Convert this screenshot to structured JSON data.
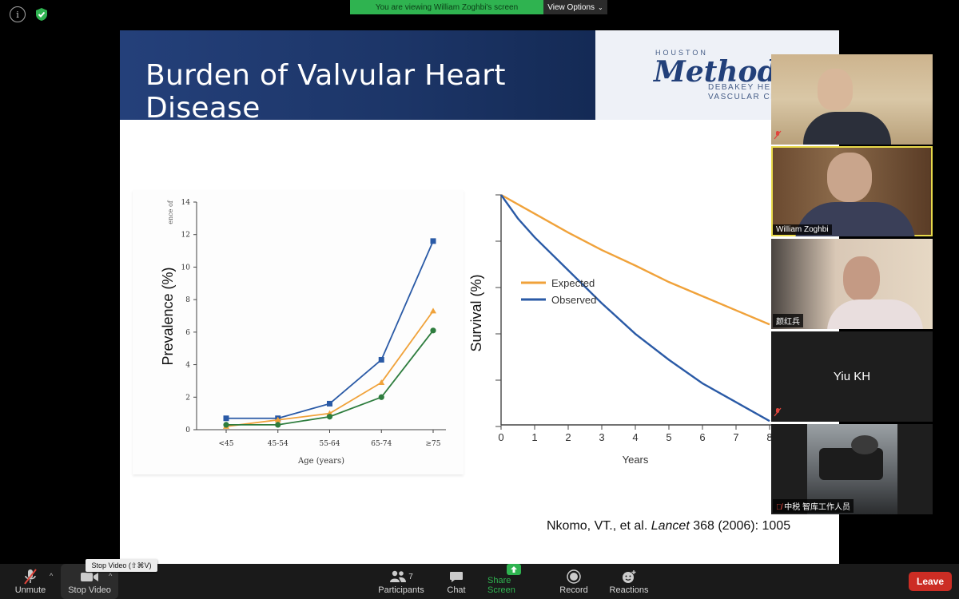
{
  "banner": {
    "message": "You are viewing William Zoghbi's screen",
    "view_options": "View Options"
  },
  "slide": {
    "title": "Burden of Valvular Heart Disease",
    "logo": {
      "houston": "HOUSTON",
      "name": "Methodis",
      "line1": "DEBAKEY HEA",
      "line2": "VASCULAR CE"
    },
    "citation_prefix": "Nkomo, VT., et al. ",
    "citation_journal": "Lancet",
    "citation_suffix": " 368 (2006): 1005"
  },
  "chart_data": [
    {
      "type": "line",
      "title": "",
      "ylabel": "Prevalence (%)",
      "ylabel_truncated": "ence of",
      "xlabel": "Age (years)",
      "categories": [
        "<45",
        "45-54",
        "55-64",
        "65-74",
        "≥75"
      ],
      "ylim": [
        0,
        14
      ],
      "yticks": [
        0,
        2,
        4,
        6,
        8,
        10,
        12,
        14
      ],
      "series": [
        {
          "color": "#2a5aa6",
          "marker": "square",
          "values": [
            0.7,
            0.7,
            1.6,
            4.3,
            11.6
          ]
        },
        {
          "color": "#f0a23a",
          "marker": "triangle",
          "values": [
            0.2,
            0.6,
            1.0,
            2.9,
            7.3
          ]
        },
        {
          "color": "#2e7d3e",
          "marker": "circle",
          "values": [
            0.3,
            0.3,
            0.8,
            2.0,
            6.1
          ]
        }
      ],
      "grid": false
    },
    {
      "type": "line",
      "title": "",
      "ylabel": "Survival (%)",
      "xlabel": "Years",
      "xticks": [
        0,
        1,
        2,
        3,
        4,
        5,
        6,
        7,
        8
      ],
      "xlim": [
        0,
        8
      ],
      "legend_position": "center-left",
      "series": [
        {
          "name": "Expected",
          "color": "#f0a23a",
          "x": [
            0,
            1,
            2,
            3,
            4,
            5,
            6,
            7,
            8
          ],
          "y": [
            100,
            96,
            92,
            88.3,
            85,
            81.5,
            78.5,
            75.5,
            72.5
          ]
        },
        {
          "name": "Observed",
          "color": "#2a5aa6",
          "x": [
            0,
            0.5,
            1,
            2,
            3,
            4,
            5,
            6,
            7,
            8
          ],
          "y": [
            100,
            95,
            91,
            84,
            77,
            70.5,
            65,
            60,
            56,
            52
          ]
        }
      ],
      "grid": false
    }
  ],
  "participants": [
    {
      "name": "",
      "muted": true
    },
    {
      "name": "William Zoghbi",
      "muted": false,
      "active_speaker": true
    },
    {
      "name": "颜红兵",
      "muted": false
    },
    {
      "name": "Yiu KH",
      "muted": true,
      "video_off": true
    },
    {
      "name": "中税 智库工作人员",
      "muted": true
    }
  ],
  "toolbar": {
    "unmute": "Unmute",
    "stop_video": "Stop Video",
    "participants": "Participants",
    "participants_count": "7",
    "chat": "Chat",
    "share_screen": "Share Screen",
    "record": "Record",
    "reactions": "Reactions",
    "leave": "Leave",
    "tooltip": "Stop Video (⇧⌘V)"
  },
  "colors": {
    "share_green": "#2fb350",
    "leave_red": "#cc2d24",
    "active_speaker": "#e8d94a",
    "header_navy": "#1c3567"
  }
}
